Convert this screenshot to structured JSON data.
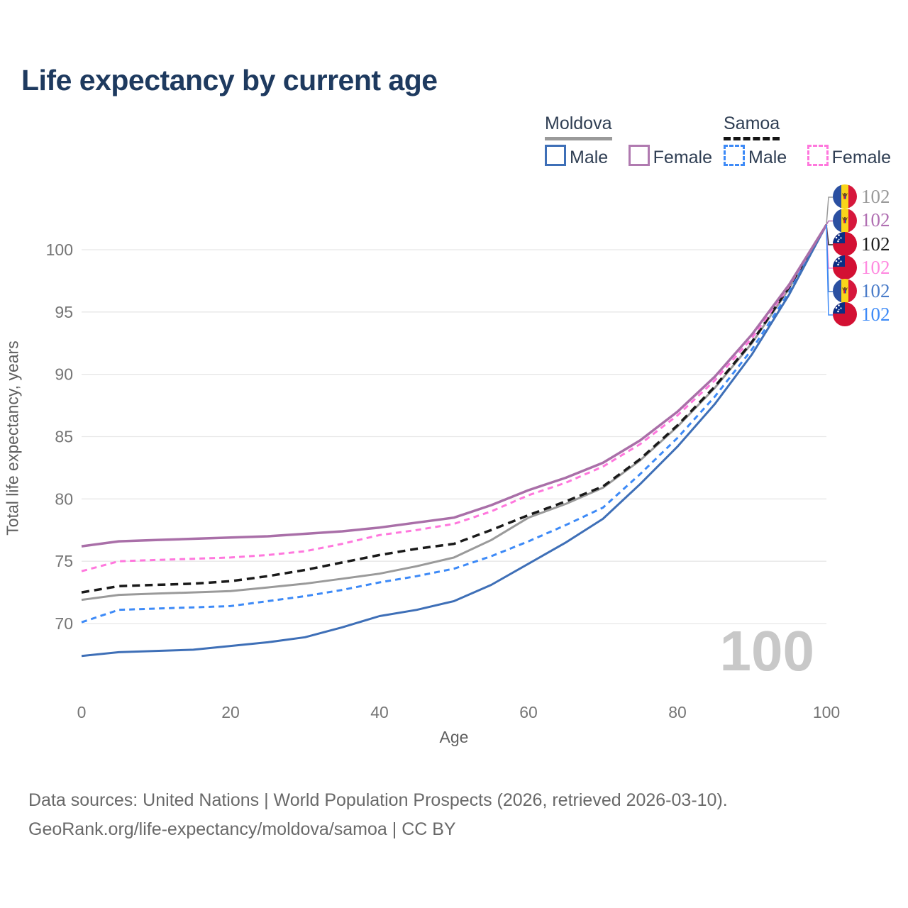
{
  "title": "Life expectancy by current age",
  "legend": {
    "groups": [
      {
        "country": "Moldova",
        "line_style": "solid",
        "underline_color": "#9a9a9a",
        "items": [
          {
            "label": "Male",
            "color": "#3e6fb7",
            "dashed": false
          },
          {
            "label": "Female",
            "color": "#b07ab0",
            "dashed": false
          }
        ]
      },
      {
        "country": "Samoa",
        "line_style": "dashed",
        "underline_color": "#141414",
        "items": [
          {
            "label": "Male",
            "color": "#3d8af7",
            "dashed": true
          },
          {
            "label": "Female",
            "color": "#ff77dd",
            "dashed": true
          }
        ]
      }
    ]
  },
  "age_indicator": "100",
  "callouts": [
    {
      "flag": "moldova",
      "value": "102",
      "color": "#9a9a9a",
      "series": "Moldova (both sexes)"
    },
    {
      "flag": "moldova",
      "value": "102",
      "color": "#b06fb2",
      "series": "Moldova Female"
    },
    {
      "flag": "samoa",
      "value": "102",
      "color": "#1f1f1f",
      "series": "Samoa (both sexes)"
    },
    {
      "flag": "samoa",
      "value": "102",
      "color": "#ff8ae0",
      "series": "Samoa Female"
    },
    {
      "flag": "moldova",
      "value": "102",
      "color": "#4a7cc9",
      "series": "Moldova Male"
    },
    {
      "flag": "samoa",
      "value": "102",
      "color": "#3d8af7",
      "series": "Samoa Male"
    }
  ],
  "footer": {
    "line1": "Data sources: United Nations | World Population Prospects (2026, retrieved 2026-03-10).",
    "line2": "GeoRank.org/life-expectancy/moldova/samoa | CC BY"
  },
  "chart_data": {
    "type": "line",
    "title": "Life expectancy by current age",
    "xlabel": "Age",
    "ylabel": "Total life expectancy, years",
    "x_ticks": [
      0,
      20,
      40,
      60,
      80,
      100
    ],
    "y_ticks": [
      70,
      75,
      80,
      85,
      90,
      95,
      100
    ],
    "xlim": [
      0,
      100
    ],
    "ylim": [
      66,
      103
    ],
    "grid": "horizontal",
    "x": [
      0,
      5,
      10,
      15,
      20,
      25,
      30,
      35,
      40,
      45,
      50,
      55,
      60,
      65,
      70,
      75,
      80,
      85,
      90,
      95,
      100
    ],
    "series": [
      {
        "name": "Moldova (both sexes)",
        "color": "#9a9a9a",
        "dash": null,
        "width": 3,
        "values": [
          71.9,
          72.3,
          72.4,
          72.5,
          72.6,
          72.9,
          73.2,
          73.6,
          74.0,
          74.6,
          75.3,
          76.7,
          78.5,
          79.6,
          80.9,
          83.1,
          85.8,
          88.9,
          92.5,
          96.9,
          102.0
        ]
      },
      {
        "name": "Samoa (both sexes)",
        "color": "#1a1a1a",
        "dash": "11 7",
        "width": 3.5,
        "values": [
          72.5,
          73.0,
          73.1,
          73.2,
          73.4,
          73.8,
          74.3,
          74.9,
          75.5,
          76.0,
          76.4,
          77.5,
          78.7,
          79.8,
          81.0,
          83.2,
          85.9,
          89.0,
          92.6,
          97.0,
          102.0
        ]
      },
      {
        "name": "Samoa Male",
        "color": "#3d8af7",
        "dash": "8 6",
        "width": 3,
        "values": [
          70.1,
          71.1,
          71.2,
          71.3,
          71.4,
          71.8,
          72.2,
          72.7,
          73.3,
          73.8,
          74.4,
          75.4,
          76.6,
          77.9,
          79.3,
          82.0,
          84.9,
          88.2,
          92.0,
          96.6,
          102.0
        ]
      },
      {
        "name": "Moldova Male",
        "color": "#3e6fb7",
        "dash": null,
        "width": 3,
        "values": [
          67.4,
          67.7,
          67.8,
          67.9,
          68.2,
          68.5,
          68.9,
          69.7,
          70.6,
          71.1,
          71.8,
          73.1,
          74.8,
          76.5,
          78.4,
          81.2,
          84.2,
          87.6,
          91.6,
          96.4,
          102.0
        ]
      },
      {
        "name": "Samoa Female",
        "color": "#ff77dd",
        "dash": "8 6",
        "width": 3,
        "values": [
          74.2,
          75.0,
          75.1,
          75.2,
          75.3,
          75.5,
          75.8,
          76.4,
          77.1,
          77.5,
          78.0,
          79.0,
          80.3,
          81.3,
          82.6,
          84.4,
          86.7,
          89.5,
          92.9,
          97.1,
          102.0
        ]
      },
      {
        "name": "Moldova Female",
        "color": "#a96fa8",
        "dash": null,
        "width": 3.5,
        "values": [
          76.2,
          76.6,
          76.7,
          76.8,
          76.9,
          77.0,
          77.2,
          77.4,
          77.7,
          78.1,
          78.5,
          79.5,
          80.7,
          81.7,
          82.9,
          84.7,
          87.0,
          89.8,
          93.2,
          97.2,
          102.0
        ]
      }
    ],
    "end_labels": {
      "age": 100,
      "value": 102
    }
  }
}
